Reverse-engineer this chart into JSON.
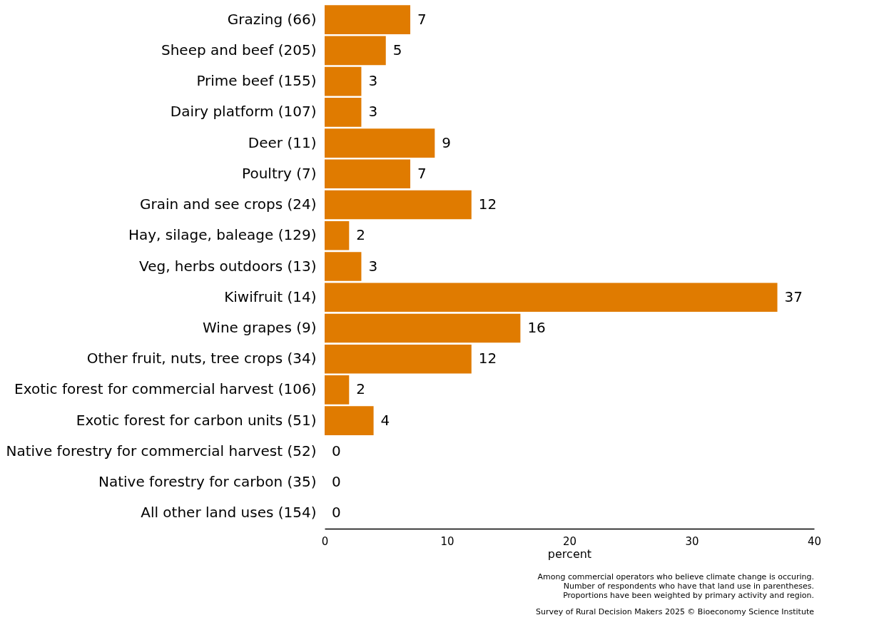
{
  "chart_data": {
    "type": "bar",
    "orientation": "horizontal",
    "xlabel": "percent",
    "categories": [
      "Grazing (66)",
      "Sheep and beef (205)",
      "Prime beef  (155)",
      "Dairy platform (107)",
      "Deer (11)",
      "Poultry (7)",
      "Grain and see crops (24)",
      "Hay, silage, baleage (129)",
      "Veg, herbs outdoors (13)",
      "Kiwifruit (14)",
      "Wine grapes (9)",
      "Other fruit, nuts, tree crops (34)",
      "Exotic forest for commercial harvest (106)",
      "Exotic forest for carbon units (51)",
      "Native forestry for commercial harvest (52)",
      "Native forestry for carbon (35)",
      "All other land uses (154)"
    ],
    "values": [
      7,
      5,
      3,
      3,
      9,
      7,
      12,
      2,
      3,
      37,
      16,
      12,
      2,
      4,
      0,
      0,
      0
    ],
    "color": "#e07b00",
    "data_labels": true,
    "xlim": [
      0,
      40
    ],
    "xticks": [
      0,
      10,
      20,
      30,
      40
    ],
    "grid": false,
    "annotations": [
      "Among commercial operators who believe climate change is occuring.",
      "Number of respondents who have that land use in parentheses.",
      "Proportions have been weighted by primary activity and region.",
      "Survey of Rural Decision Makers 2025 © Bioeconomy Science Institute"
    ]
  }
}
